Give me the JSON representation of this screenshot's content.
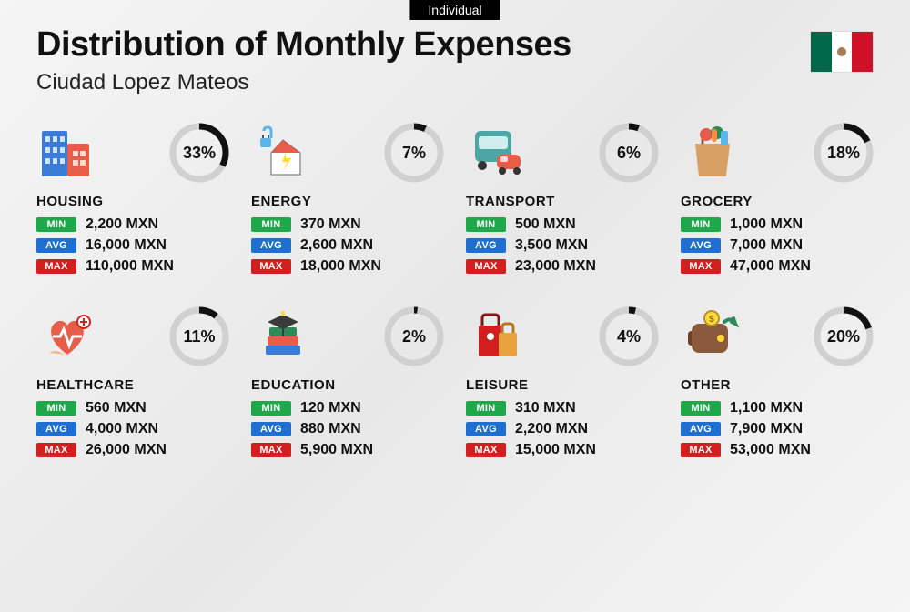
{
  "badge": "Individual",
  "title": "Distribution of Monthly Expenses",
  "subtitle": "Ciudad Lopez Mateos",
  "flag": {
    "left": "#006847",
    "mid": "#ffffff",
    "right": "#ce1126"
  },
  "labels": {
    "min": "MIN",
    "avg": "AVG",
    "max": "MAX"
  },
  "badge_colors": {
    "min": "#1fa84a",
    "avg": "#1f6fd1",
    "max": "#d11f1f"
  },
  "ring": {
    "bg": "#d0d0d0",
    "fg": "#111111",
    "stroke_width": 7,
    "size": 66
  },
  "currency_suffix": "MXN",
  "categories": [
    {
      "key": "housing",
      "name": "HOUSING",
      "percent": 33,
      "min": "2,200 MXN",
      "avg": "16,000 MXN",
      "max": "110,000 MXN",
      "icon": "housing"
    },
    {
      "key": "energy",
      "name": "ENERGY",
      "percent": 7,
      "min": "370 MXN",
      "avg": "2,600 MXN",
      "max": "18,000 MXN",
      "icon": "energy"
    },
    {
      "key": "transport",
      "name": "TRANSPORT",
      "percent": 6,
      "min": "500 MXN",
      "avg": "3,500 MXN",
      "max": "23,000 MXN",
      "icon": "transport"
    },
    {
      "key": "grocery",
      "name": "GROCERY",
      "percent": 18,
      "min": "1,000 MXN",
      "avg": "7,000 MXN",
      "max": "47,000 MXN",
      "icon": "grocery"
    },
    {
      "key": "healthcare",
      "name": "HEALTHCARE",
      "percent": 11,
      "min": "560 MXN",
      "avg": "4,000 MXN",
      "max": "26,000 MXN",
      "icon": "healthcare"
    },
    {
      "key": "education",
      "name": "EDUCATION",
      "percent": 2,
      "min": "120 MXN",
      "avg": "880 MXN",
      "max": "5,900 MXN",
      "icon": "education"
    },
    {
      "key": "leisure",
      "name": "LEISURE",
      "percent": 4,
      "min": "310 MXN",
      "avg": "2,200 MXN",
      "max": "15,000 MXN",
      "icon": "leisure"
    },
    {
      "key": "other",
      "name": "OTHER",
      "percent": 20,
      "min": "1,100 MXN",
      "avg": "7,900 MXN",
      "max": "53,000 MXN",
      "icon": "other"
    }
  ],
  "icon_colors": {
    "housing": {
      "a": "#3a7bd5",
      "b": "#e85d4a"
    },
    "energy": {
      "a": "#ffd93d",
      "b": "#5bb5e8",
      "c": "#e85d4a"
    },
    "transport": {
      "a": "#4da6a6",
      "b": "#e85d4a"
    },
    "grocery": {
      "a": "#d9a066",
      "b": "#2e8b57",
      "c": "#e85d4a"
    },
    "healthcare": {
      "a": "#e85d4a",
      "b": "#f5b78e"
    },
    "education": {
      "a": "#3a3a3a",
      "b": "#2e8b57",
      "c": "#e85d4a",
      "d": "#3a7bd5"
    },
    "leisure": {
      "a": "#d11f1f",
      "b": "#e8a23d"
    },
    "other": {
      "a": "#8b5a3c",
      "b": "#2e8b57",
      "c": "#ffd93d"
    }
  }
}
